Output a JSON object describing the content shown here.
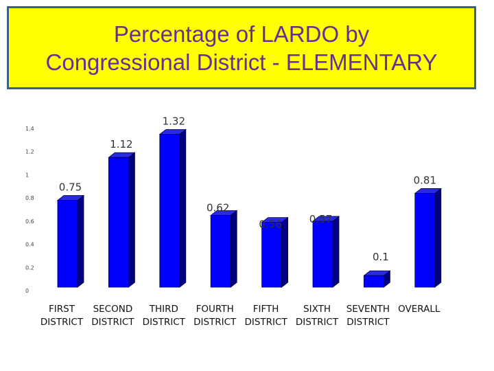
{
  "title": {
    "line1": "Percentage of LARDO by",
    "line2": "Congressional District - ELEMENTARY"
  },
  "colors": {
    "title_bg": "#ffff00",
    "title_text": "#6b2d91",
    "title_border": "#3f5f80",
    "bar_front": "#0000ff",
    "bar_side": "#000080",
    "bar_top": "#2a2ae0"
  },
  "chart_data": {
    "type": "bar",
    "title": "Percentage of LARDO by Congressional District - ELEMENTARY",
    "categories": [
      [
        "FIRST",
        "DISTRICT"
      ],
      [
        "SECOND",
        "DISTRICT"
      ],
      [
        "THIRD",
        "DISTRICT"
      ],
      [
        "FOURTH",
        "DISTRICT"
      ],
      [
        "FIFTH",
        "DISTRICT"
      ],
      [
        "SIXTH",
        "DISTRICT"
      ],
      [
        "SEVENTH",
        "DISTRICT"
      ],
      [
        "OVERALL"
      ]
    ],
    "values": [
      0.75,
      1.12,
      1.32,
      0.62,
      0.56,
      0.57,
      0.1,
      0.81
    ],
    "data_labels": [
      "0.75",
      "1.12",
      "1.32",
      "0.62",
      "0.56",
      "0.57",
      "0.1",
      "0.81"
    ],
    "yticks": [
      "0",
      "0.2",
      "0.4",
      "0.6",
      "0.8",
      "1",
      "1.2",
      "1.4"
    ],
    "ylim": [
      0,
      1.4
    ],
    "xlabel": "",
    "ylabel": "",
    "grid": false,
    "legend": "none",
    "style": "3d-bar"
  }
}
